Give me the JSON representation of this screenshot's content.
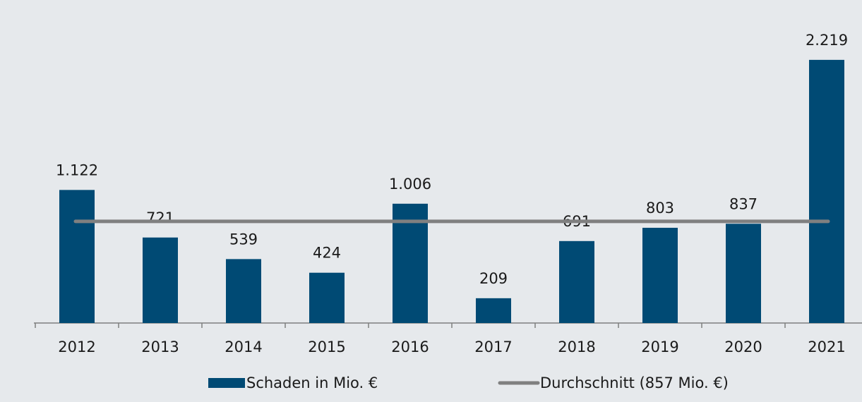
{
  "chart_data": {
    "type": "bar",
    "categories": [
      "2012",
      "2013",
      "2014",
      "2015",
      "2016",
      "2017",
      "2018",
      "2019",
      "2020",
      "2021"
    ],
    "series": [
      {
        "name": "Schaden in Mio. €",
        "color": "#004a74",
        "values": [
          1122,
          721,
          539,
          424,
          1006,
          209,
          691,
          803,
          837,
          2219
        ],
        "value_labels": [
          "1.122",
          "721",
          "539",
          "424",
          "1.006",
          "209",
          "691",
          "803",
          "837",
          "2.219"
        ]
      }
    ],
    "average": {
      "name": "Durchschnitt (857 Mio. €)",
      "value": 857,
      "color": "#808080"
    },
    "ylim": [
      0,
      2700
    ]
  }
}
